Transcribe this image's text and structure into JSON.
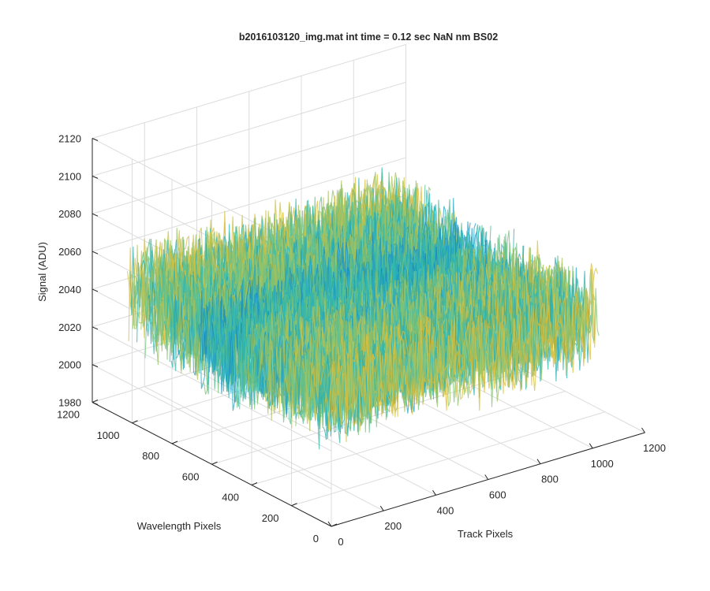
{
  "chart_data": {
    "type": "surface",
    "title": "b2016103120_img.mat int time = 0.12 sec  NaN nm BS02",
    "xlabel": "Track Pixels",
    "ylabel": "Wavelength Pixels",
    "zlabel": "Signal (ADU)",
    "xlim": [
      0,
      1200
    ],
    "ylim": [
      0,
      1200
    ],
    "zlim": [
      1980,
      2120
    ],
    "xticks": [
      "0",
      "200",
      "400",
      "600",
      "800",
      "1000",
      "1200"
    ],
    "yticks": [
      "0",
      "200",
      "400",
      "600",
      "800",
      "1000",
      "1200"
    ],
    "zticks": [
      "1980",
      "2000",
      "2020",
      "2040",
      "2060",
      "2080",
      "2100",
      "2120"
    ],
    "x_extent": [
      0,
      1024
    ],
    "y_extent": [
      0,
      1024
    ],
    "signal_mean": 2045,
    "signal_range": [
      2000,
      2112
    ],
    "colormap": [
      "#0b72bd",
      "#1fa0c9",
      "#2eb8b0",
      "#78c37a",
      "#c9c048",
      "#ecbe2e"
    ],
    "grid": true
  }
}
